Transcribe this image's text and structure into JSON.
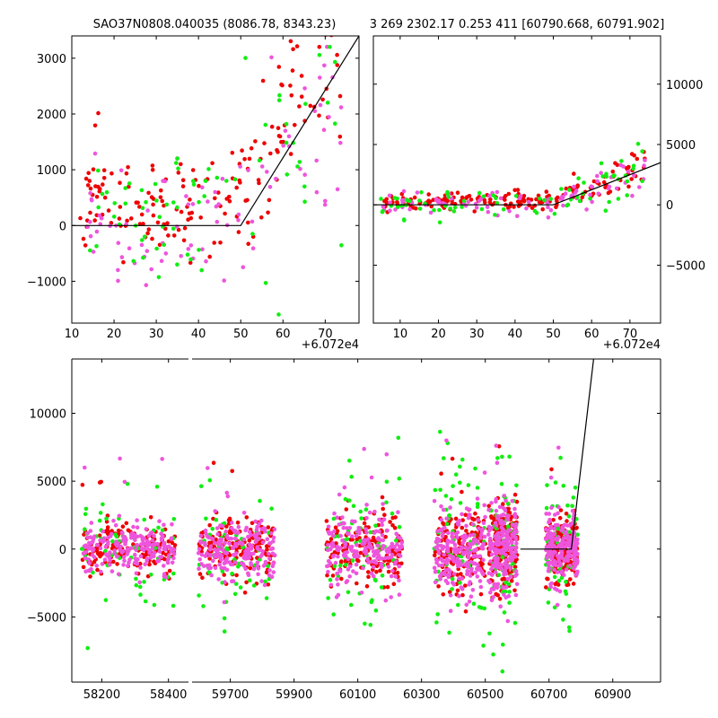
{
  "chart_data": [
    {
      "id": "top-left",
      "type": "scatter",
      "title": "SAO37N0808.040035 (8086.78, 8343.23)",
      "xlim": [
        10,
        78
      ],
      "ylim": [
        -1750,
        3400
      ],
      "xticks": [
        10,
        20,
        30,
        40,
        50,
        60,
        70
      ],
      "xtick_labels": [
        "10",
        "20",
        "30",
        "40",
        "50",
        "60",
        "70"
      ],
      "yticks": [
        -1000,
        0,
        1000,
        2000,
        3000
      ],
      "ytick_labels": [
        "−1000",
        "0",
        "1000",
        "2000",
        "3000"
      ],
      "offset_label": "+6.072e4",
      "model_line": [
        [
          8,
          0
        ],
        [
          50,
          0
        ],
        [
          78,
          3400
        ]
      ],
      "series": [
        {
          "name": "red",
          "color": "#ee0000",
          "n": 170,
          "seed": 11
        },
        {
          "name": "magenta",
          "color": "#ee55dd",
          "n": 90,
          "seed": 23
        },
        {
          "name": "green",
          "color": "#11ee11",
          "n": 75,
          "seed": 37
        }
      ]
    },
    {
      "id": "top-right",
      "type": "scatter",
      "title": "3 269 2302.17 0.253 411 [60790.668, 60791.902]",
      "xlim": [
        3,
        78
      ],
      "ylim": [
        -9800,
        14000
      ],
      "xticks": [
        10,
        20,
        30,
        40,
        50,
        60,
        70
      ],
      "xtick_labels": [
        "10",
        "20",
        "30",
        "40",
        "50",
        "60",
        "70"
      ],
      "yticks": [
        -5000,
        0,
        5000,
        10000
      ],
      "ytick_labels": [
        "−5000",
        "0",
        "5000",
        "10000"
      ],
      "offset_label": "+6.072e4",
      "model_line": [
        [
          3,
          0
        ],
        [
          50,
          0
        ],
        [
          78,
          3500
        ]
      ],
      "series": [
        {
          "name": "red",
          "color": "#ee0000",
          "n": 170,
          "seed": 41
        },
        {
          "name": "magenta",
          "color": "#ee55dd",
          "n": 90,
          "seed": 53
        },
        {
          "name": "green",
          "color": "#11ee11",
          "n": 75,
          "seed": 67
        }
      ]
    },
    {
      "id": "bottom",
      "type": "scatter",
      "ylim": [
        -9800,
        14000
      ],
      "yticks": [
        -5000,
        0,
        5000,
        10000
      ],
      "ytick_labels": [
        "−5000",
        "0",
        "5000",
        "10000"
      ],
      "segments": [
        {
          "xlim": [
            58110,
            58460
          ],
          "xticks": [
            58200,
            58400
          ],
          "xtick_labels": [
            "58200",
            "58400"
          ],
          "clusters": [
            {
              "x0": 58140,
              "x1": 58420,
              "spread": 900
            }
          ]
        },
        {
          "xlim": [
            59580,
            60510
          ],
          "xticks": [
            59700,
            59900,
            60100,
            60300,
            60500
          ],
          "xtick_labels": [
            "59700",
            "59900",
            "60100",
            "60300",
            "60500"
          ],
          "clusters": [
            {
              "x0": 59600,
              "x1": 59840,
              "spread": 1100
            },
            {
              "x0": 60000,
              "x1": 60240,
              "spread": 1300
            },
            {
              "x0": 60340,
              "x1": 60500,
              "spread": 1600
            }
          ]
        }
      ],
      "segment3_clusters": [
        {
          "x0": 60510,
          "x1": 60600,
          "spread": 1600
        },
        {
          "x0": 60690,
          "x1": 60790,
          "spread": 1200
        }
      ],
      "xlim_right": [
        60510,
        61050
      ],
      "xticks_right": [
        60700,
        60900
      ],
      "xtick_labels_right": [
        "60700",
        "60900"
      ],
      "model_line": [
        [
          60610,
          0
        ],
        [
          60770,
          0
        ],
        [
          60840,
          14000
        ]
      ]
    }
  ]
}
